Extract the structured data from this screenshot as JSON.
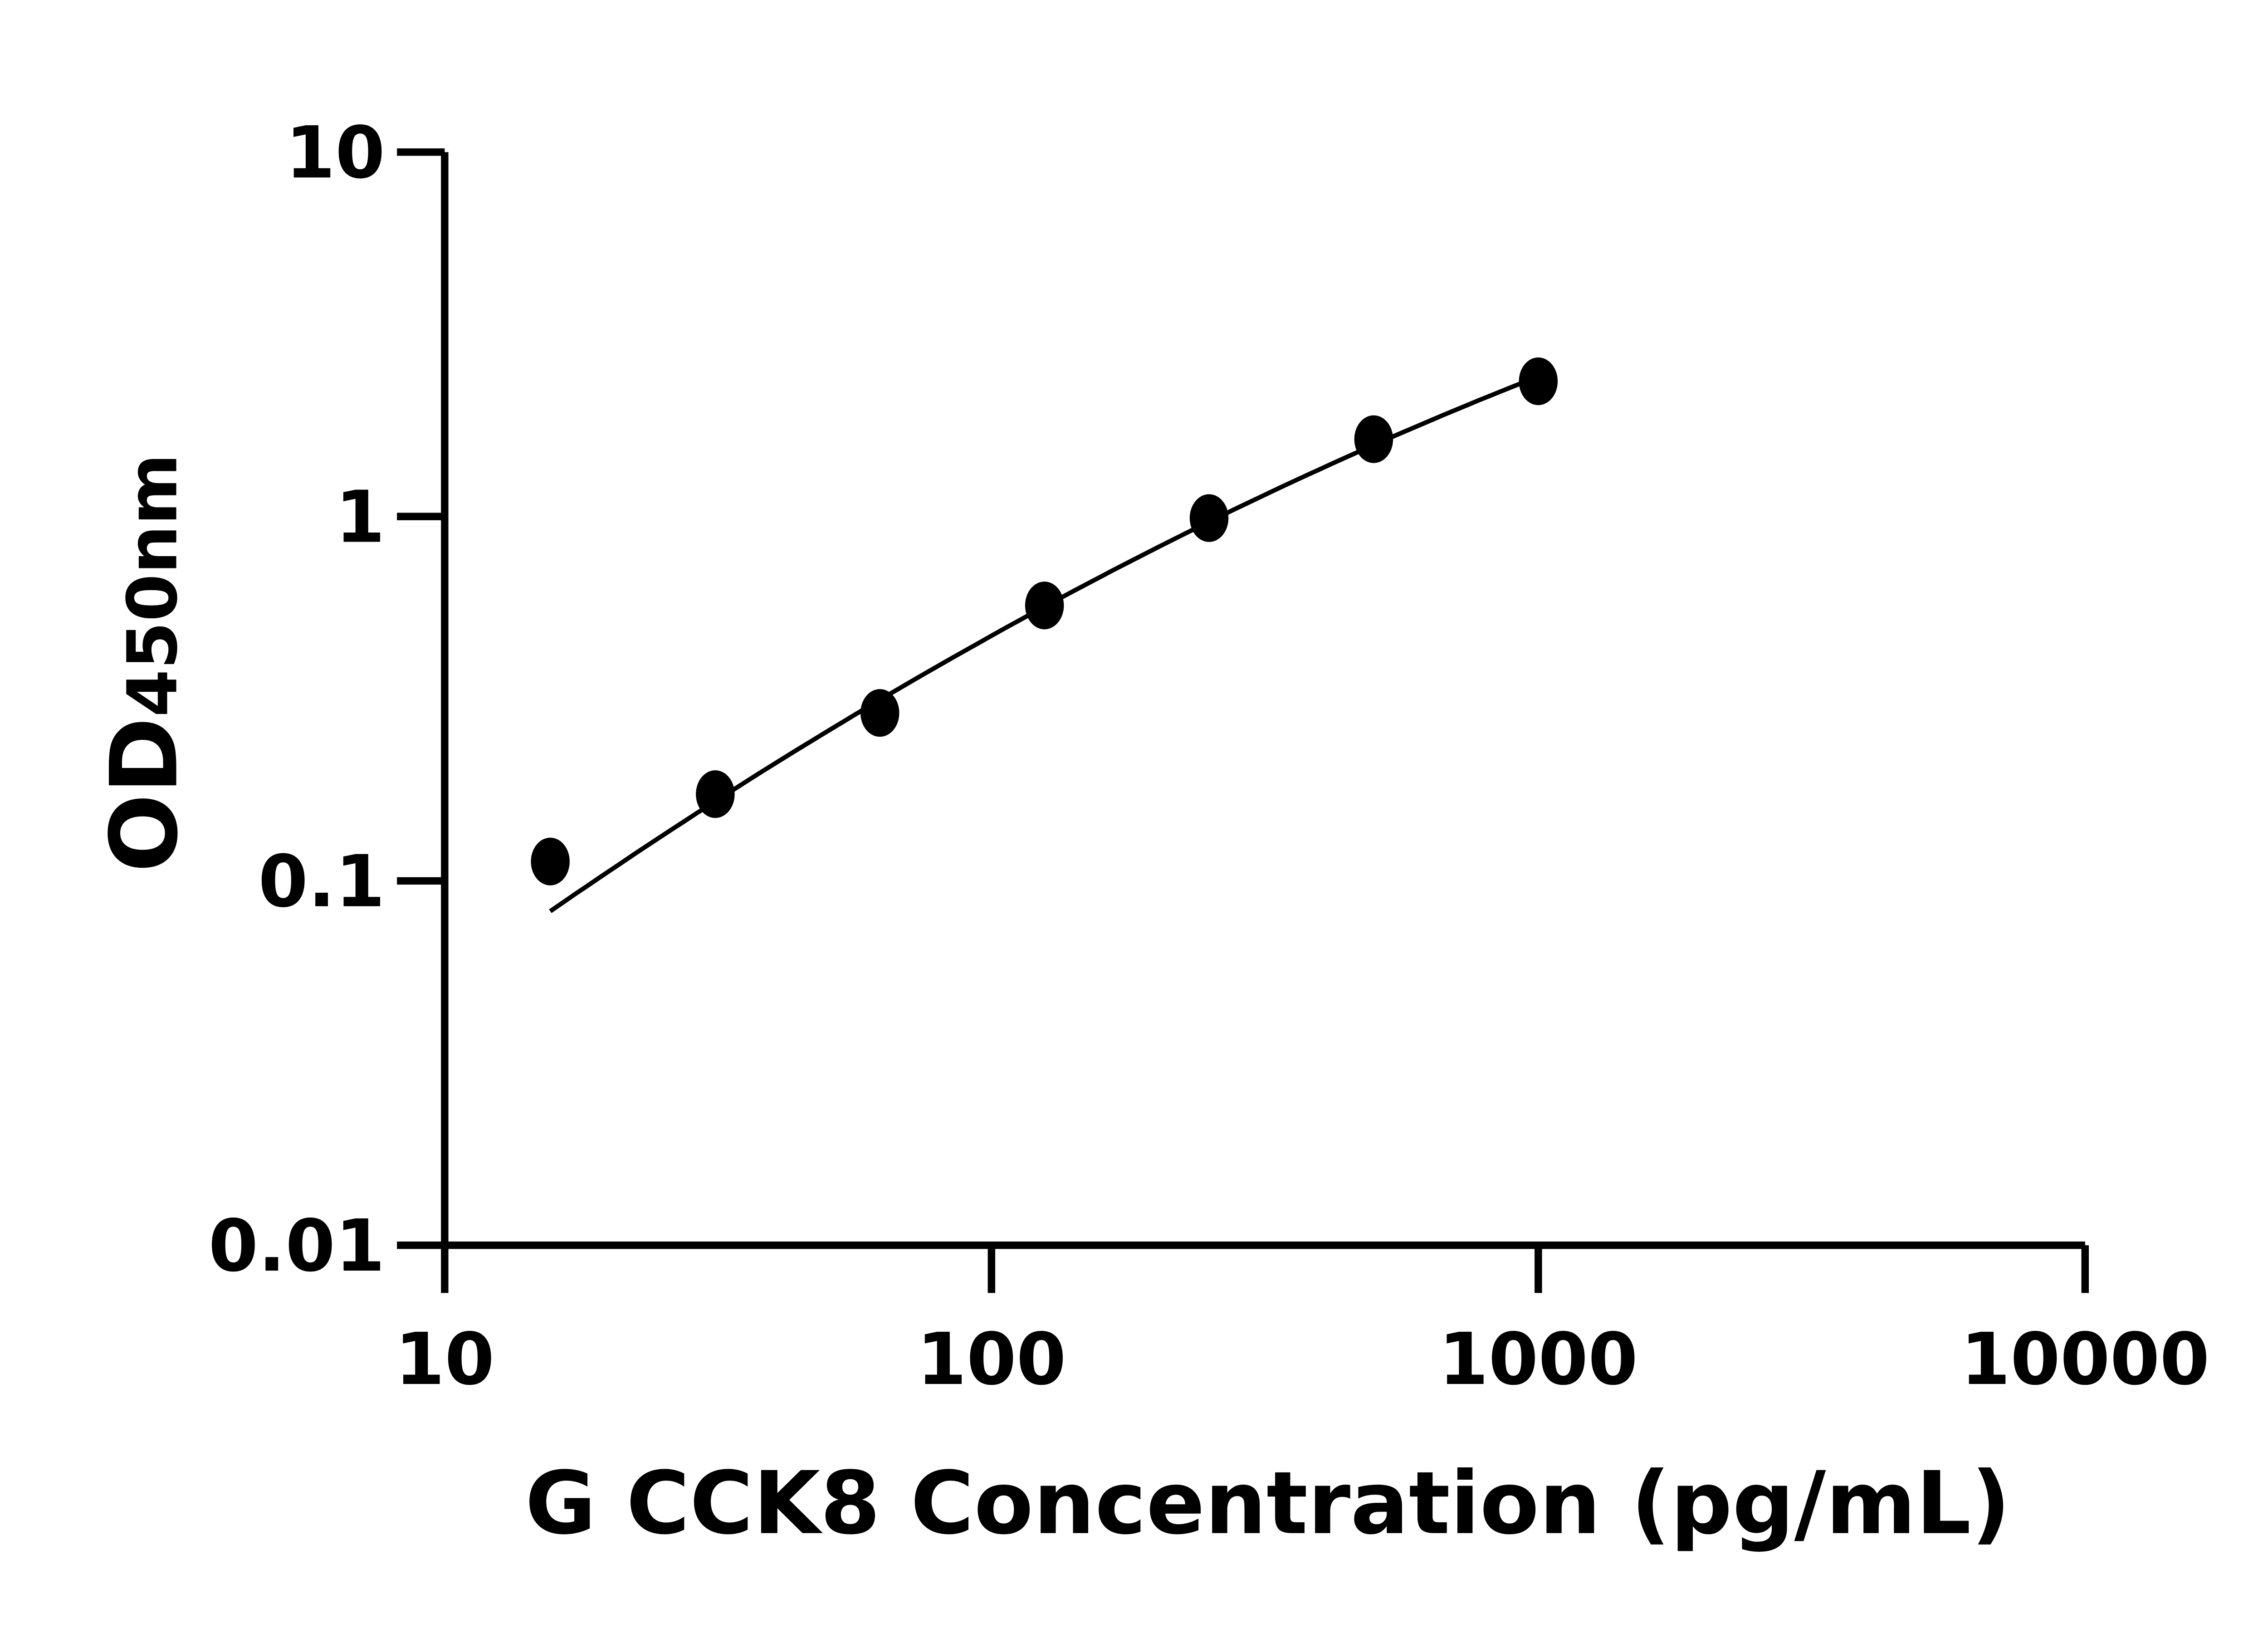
{
  "chart_data": {
    "type": "scatter",
    "title": "",
    "xlabel": "G CCK8 Concentration (pg/mL)",
    "ylabel_main": "OD",
    "ylabel_sub": "450nm",
    "x_scale": "log",
    "y_scale": "log",
    "xlim": [
      10,
      10000
    ],
    "ylim": [
      0.01,
      10
    ],
    "x_ticks": [
      "10",
      "100",
      "1000",
      "10000"
    ],
    "y_ticks": [
      "0.01",
      "0.1",
      "1",
      "10"
    ],
    "grid": false,
    "legend": "none",
    "fit_curve": true,
    "series": [
      {
        "x": [
          15.6,
          31.25,
          62.5,
          125,
          250,
          500,
          1000
        ],
        "y": [
          0.113,
          0.173,
          0.289,
          0.57,
          0.99,
          1.63,
          2.35
        ]
      }
    ],
    "colors": {
      "marker": "#000000",
      "line": "#000000",
      "axis": "#000000"
    }
  }
}
